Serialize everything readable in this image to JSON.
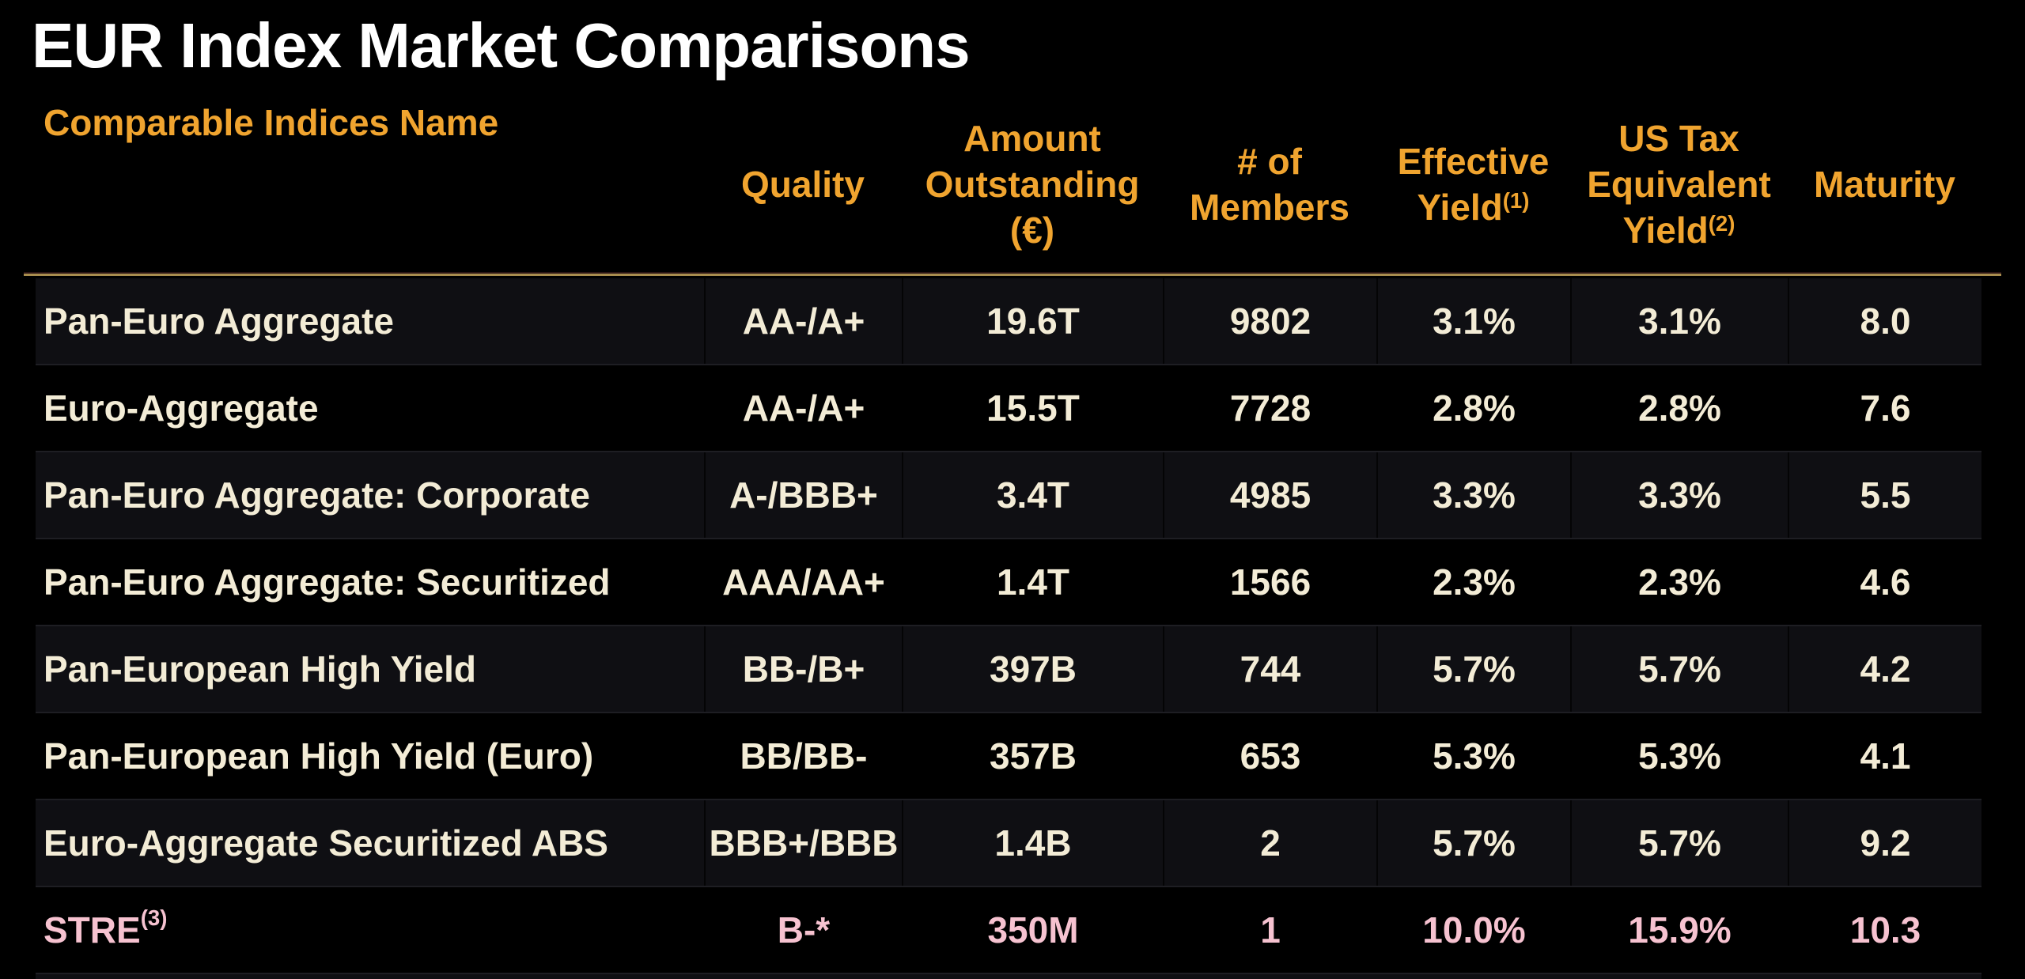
{
  "title": "EUR Index Market Comparisons",
  "colors": {
    "background": "#000000",
    "title_text": "#ffffff",
    "header_orange": "#f0a42f",
    "gold_rule": "#a98d4e",
    "row_text_cream": "#f3ecd6",
    "highlight_pink": "#f6c2d0",
    "stripe_row_bg": "#0f0f13",
    "row_divider": "#1e1e23"
  },
  "table": {
    "columns": [
      {
        "key": "name",
        "label": "Comparable Indices Name",
        "lines": [
          "Comparable Indices Name"
        ],
        "sup": ""
      },
      {
        "key": "quality",
        "label": "Quality",
        "lines": [
          "Quality"
        ],
        "sup": ""
      },
      {
        "key": "amount",
        "label": "Amount Outstanding (€)",
        "lines": [
          "Amount",
          "Outstanding",
          "(€)"
        ],
        "sup": ""
      },
      {
        "key": "members",
        "label": "# of Members",
        "lines": [
          "# of",
          "Members"
        ],
        "sup": ""
      },
      {
        "key": "eff_yield",
        "label": "Effective Yield",
        "lines": [
          "Effective",
          "Yield"
        ],
        "sup": "(1)"
      },
      {
        "key": "us_tax",
        "label": "US Tax Equivalent Yield",
        "lines": [
          "US Tax",
          "Equivalent",
          "Yield"
        ],
        "sup": "(2)"
      },
      {
        "key": "maturity",
        "label": "Maturity",
        "lines": [
          "Maturity"
        ],
        "sup": ""
      }
    ],
    "rows": [
      {
        "name": "Pan-Euro Aggregate",
        "name_sup": "",
        "quality": "AA-/A+",
        "amount": "19.6T",
        "members": "9802",
        "eff_yield": "3.1%",
        "us_tax": "3.1%",
        "maturity": "8.0",
        "highlight": false
      },
      {
        "name": "Euro-Aggregate",
        "name_sup": "",
        "quality": "AA-/A+",
        "amount": "15.5T",
        "members": "7728",
        "eff_yield": "2.8%",
        "us_tax": "2.8%",
        "maturity": "7.6",
        "highlight": false
      },
      {
        "name": "Pan-Euro Aggregate: Corporate",
        "name_sup": "",
        "quality": "A-/BBB+",
        "amount": "3.4T",
        "members": "4985",
        "eff_yield": "3.3%",
        "us_tax": "3.3%",
        "maturity": "5.5",
        "highlight": false
      },
      {
        "name": "Pan-Euro Aggregate: Securitized",
        "name_sup": "",
        "quality": "AAA/AA+",
        "amount": "1.4T",
        "members": "1566",
        "eff_yield": "2.3%",
        "us_tax": "2.3%",
        "maturity": "4.6",
        "highlight": false
      },
      {
        "name": "Pan-European High Yield",
        "name_sup": "",
        "quality": "BB-/B+",
        "amount": "397B",
        "members": "744",
        "eff_yield": "5.7%",
        "us_tax": "5.7%",
        "maturity": "4.2",
        "highlight": false
      },
      {
        "name": "Pan-European High Yield (Euro)",
        "name_sup": "",
        "quality": "BB/BB-",
        "amount": "357B",
        "members": "653",
        "eff_yield": "5.3%",
        "us_tax": "5.3%",
        "maturity": "4.1",
        "highlight": false
      },
      {
        "name": "Euro-Aggregate Securitized ABS",
        "name_sup": "",
        "quality": "BBB+/BBB",
        "amount": "1.4B",
        "members": "2",
        "eff_yield": "5.7%",
        "us_tax": "5.7%",
        "maturity": "9.2",
        "highlight": false
      },
      {
        "name": "STRE",
        "name_sup": "(3)",
        "quality": "B-*",
        "amount": "350M",
        "members": "1",
        "eff_yield": "10.0%",
        "us_tax": "15.9%",
        "maturity": "10.3",
        "highlight": true
      }
    ]
  }
}
